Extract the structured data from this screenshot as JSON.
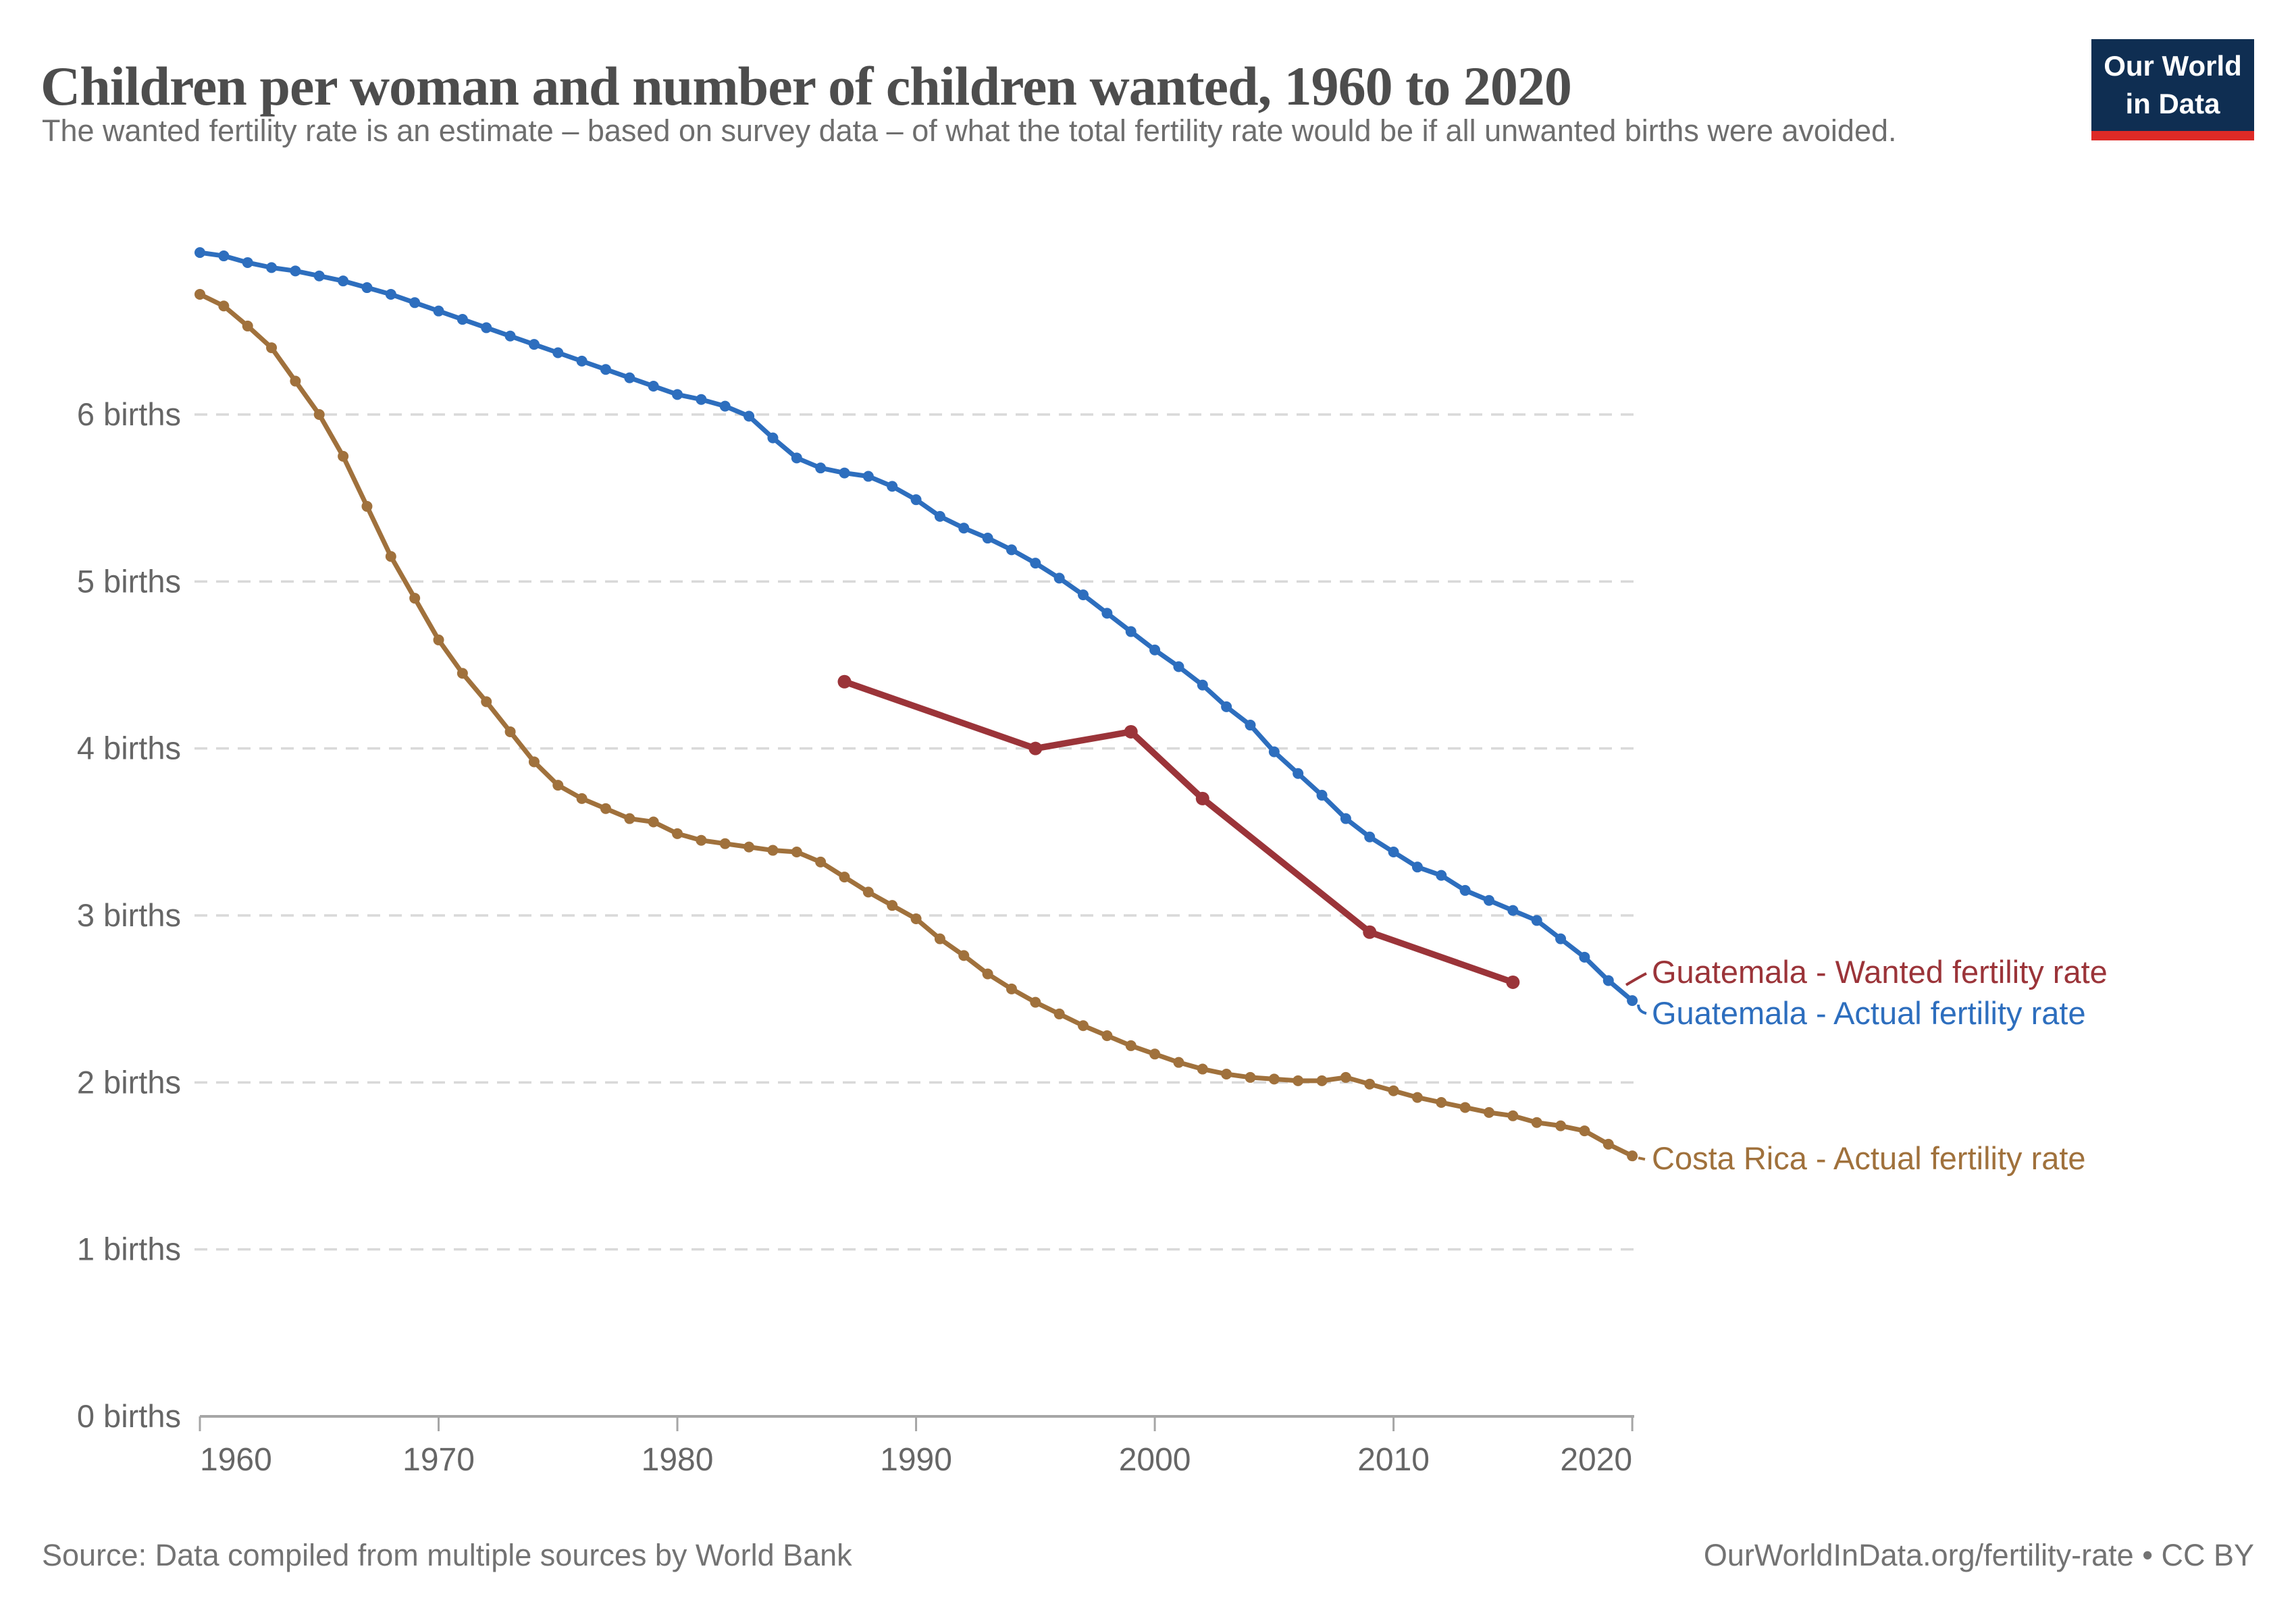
{
  "header": {
    "title": "Children per woman and number of children wanted, 1960 to 2020",
    "subtitle": "The wanted fertility rate is an estimate – based on survey data – of what the total fertility rate would be if all unwanted births were avoided."
  },
  "logo": {
    "line1": "Our World",
    "line2": "in Data",
    "bg_color": "#0F2E52",
    "stripe_color": "#DE2A26"
  },
  "footer": {
    "source": "Source: Data compiled from multiple sources by World Bank",
    "link": "OurWorldInData.org/fertility-rate • CC BY"
  },
  "colors": {
    "title_text": "#4d4d4d",
    "subtitle_text": "#6e6e6e",
    "axis_text": "#666666",
    "gridline": "#d9d9d9",
    "axis_line": "#a6a6a6",
    "footer_text": "#737373"
  },
  "chart_data": {
    "type": "line",
    "title": "Children per woman and number of children wanted, 1960 to 2020",
    "xlabel": "",
    "ylabel": "",
    "xlim": [
      1960,
      2020
    ],
    "ylim": [
      0,
      7.1
    ],
    "grid": "horizontal-dashed",
    "legend_position": "right-annotations",
    "x_ticks": [
      {
        "value": 1960,
        "label": "1960"
      },
      {
        "value": 1970,
        "label": "1970"
      },
      {
        "value": 1980,
        "label": "1980"
      },
      {
        "value": 1990,
        "label": "1990"
      },
      {
        "value": 2000,
        "label": "2000"
      },
      {
        "value": 2010,
        "label": "2010"
      },
      {
        "value": 2020,
        "label": "2020"
      }
    ],
    "y_ticks": [
      {
        "value": 0,
        "label": "0 births"
      },
      {
        "value": 1,
        "label": "1 births"
      },
      {
        "value": 2,
        "label": "2 births"
      },
      {
        "value": 3,
        "label": "3 births"
      },
      {
        "value": 4,
        "label": "4 births"
      },
      {
        "value": 5,
        "label": "5 births"
      },
      {
        "value": 6,
        "label": "6 births"
      }
    ],
    "series": [
      {
        "name": "Guatemala - Wanted fertility rate",
        "color": "#9B3439",
        "x": [
          1987,
          1995,
          1999,
          2002,
          2009,
          2015
        ],
        "values": [
          4.4,
          4.0,
          4.1,
          3.7,
          2.9,
          2.6
        ]
      },
      {
        "name": "Guatemala - Actual fertility rate",
        "color": "#2D6EBE",
        "x": [
          1960,
          1961,
          1962,
          1963,
          1964,
          1965,
          1966,
          1967,
          1968,
          1969,
          1970,
          1971,
          1972,
          1973,
          1974,
          1975,
          1976,
          1977,
          1978,
          1979,
          1980,
          1981,
          1982,
          1983,
          1984,
          1985,
          1986,
          1987,
          1988,
          1989,
          1990,
          1991,
          1992,
          1993,
          1994,
          1995,
          1996,
          1997,
          1998,
          1999,
          2000,
          2001,
          2002,
          2003,
          2004,
          2005,
          2006,
          2007,
          2008,
          2009,
          2010,
          2011,
          2012,
          2013,
          2014,
          2015,
          2016,
          2017,
          2018,
          2019,
          2020
        ],
        "values": [
          6.97,
          6.95,
          6.91,
          6.88,
          6.86,
          6.83,
          6.8,
          6.76,
          6.72,
          6.67,
          6.62,
          6.57,
          6.52,
          6.47,
          6.42,
          6.37,
          6.32,
          6.27,
          6.22,
          6.17,
          6.12,
          6.09,
          6.05,
          5.99,
          5.86,
          5.74,
          5.68,
          5.65,
          5.63,
          5.57,
          5.49,
          5.39,
          5.32,
          5.26,
          5.19,
          5.11,
          5.02,
          4.92,
          4.81,
          4.7,
          4.59,
          4.49,
          4.38,
          4.25,
          4.14,
          3.98,
          3.85,
          3.72,
          3.58,
          3.47,
          3.38,
          3.29,
          3.24,
          3.15,
          3.09,
          3.03,
          2.97,
          2.86,
          2.75,
          2.61,
          2.49
        ]
      },
      {
        "name": "Costa Rica - Actual fertility rate",
        "color": "#A0713C",
        "x": [
          1960,
          1961,
          1962,
          1963,
          1964,
          1965,
          1966,
          1967,
          1968,
          1969,
          1970,
          1971,
          1972,
          1973,
          1974,
          1975,
          1976,
          1977,
          1978,
          1979,
          1980,
          1981,
          1982,
          1983,
          1984,
          1985,
          1986,
          1987,
          1988,
          1989,
          1990,
          1991,
          1992,
          1993,
          1994,
          1995,
          1996,
          1997,
          1998,
          1999,
          2000,
          2001,
          2002,
          2003,
          2004,
          2005,
          2006,
          2007,
          2008,
          2009,
          2010,
          2011,
          2012,
          2013,
          2014,
          2015,
          2016,
          2017,
          2018,
          2019,
          2020
        ],
        "values": [
          6.72,
          6.65,
          6.53,
          6.4,
          6.2,
          6.0,
          5.75,
          5.45,
          5.15,
          4.9,
          4.65,
          4.45,
          4.28,
          4.1,
          3.92,
          3.78,
          3.7,
          3.64,
          3.58,
          3.56,
          3.49,
          3.45,
          3.43,
          3.41,
          3.39,
          3.38,
          3.32,
          3.23,
          3.14,
          3.06,
          2.98,
          2.86,
          2.76,
          2.65,
          2.56,
          2.48,
          2.41,
          2.34,
          2.28,
          2.22,
          2.17,
          2.12,
          2.08,
          2.05,
          2.03,
          2.02,
          2.01,
          2.01,
          2.03,
          1.99,
          1.95,
          1.91,
          1.88,
          1.85,
          1.82,
          1.8,
          1.76,
          1.74,
          1.71,
          1.63,
          1.56
        ]
      }
    ]
  }
}
